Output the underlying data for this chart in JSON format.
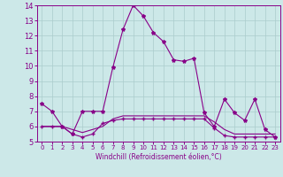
{
  "xlabel": "Windchill (Refroidissement éolien,°C)",
  "background_color": "#cce8e8",
  "grid_color": "#aacccc",
  "line_color": "#880088",
  "xlim": [
    -0.5,
    23.5
  ],
  "ylim": [
    5,
    14
  ],
  "xticks": [
    0,
    1,
    2,
    3,
    4,
    5,
    6,
    7,
    8,
    9,
    10,
    11,
    12,
    13,
    14,
    15,
    16,
    17,
    18,
    19,
    20,
    21,
    22,
    23
  ],
  "yticks": [
    5,
    6,
    7,
    8,
    9,
    10,
    11,
    12,
    13,
    14
  ],
  "line1_x": [
    0,
    1,
    2,
    3,
    4,
    5,
    6,
    7,
    8,
    9,
    10,
    11,
    12,
    13,
    14,
    15,
    16,
    17,
    18,
    19,
    20,
    21,
    22,
    23
  ],
  "line1_y": [
    7.5,
    7.0,
    6.0,
    5.5,
    7.0,
    7.0,
    7.0,
    9.9,
    12.4,
    14.0,
    13.3,
    12.2,
    11.6,
    10.4,
    10.3,
    10.5,
    6.9,
    6.0,
    7.8,
    6.9,
    6.4,
    7.8,
    5.8,
    5.3
  ],
  "line2_x": [
    0,
    1,
    2,
    3,
    4,
    5,
    6,
    7,
    8,
    9,
    10,
    11,
    12,
    13,
    14,
    15,
    16,
    17,
    18,
    19,
    20,
    21,
    22,
    23
  ],
  "line2_y": [
    6.0,
    6.0,
    6.0,
    5.5,
    5.3,
    5.5,
    6.2,
    6.4,
    6.5,
    6.5,
    6.5,
    6.5,
    6.5,
    6.5,
    6.5,
    6.5,
    6.5,
    5.9,
    5.4,
    5.3,
    5.3,
    5.3,
    5.3,
    5.3
  ],
  "line3_x": [
    0,
    1,
    2,
    3,
    4,
    5,
    6,
    7,
    8,
    9,
    10,
    11,
    12,
    13,
    14,
    15,
    16,
    17,
    18,
    19,
    20,
    21,
    22,
    23
  ],
  "line3_y": [
    6.0,
    6.0,
    6.0,
    5.8,
    5.6,
    5.8,
    6.0,
    6.5,
    6.7,
    6.7,
    6.7,
    6.7,
    6.7,
    6.7,
    6.7,
    6.7,
    6.7,
    6.3,
    5.8,
    5.5,
    5.5,
    5.5,
    5.5,
    5.5
  ],
  "tick_fontsize": 5,
  "xlabel_fontsize": 5.5
}
